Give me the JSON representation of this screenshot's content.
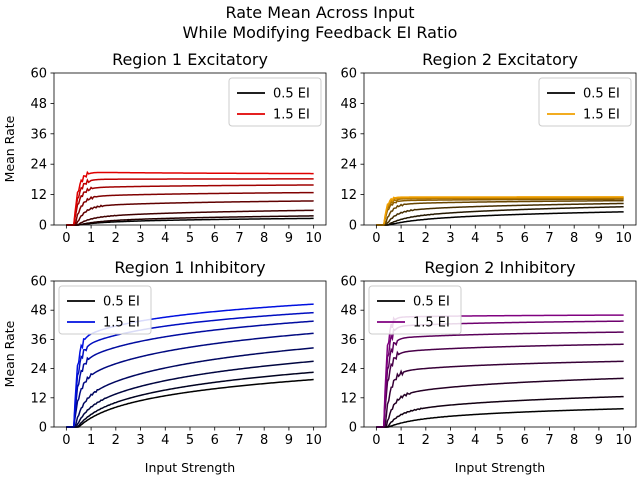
{
  "figure": {
    "title_line1": "Rate Mean Across Input",
    "title_line2": "While Modifying Feedback EI Ratio"
  },
  "chart_data": [
    {
      "type": "line",
      "title": "Region 1 Excitatory",
      "xlabel": "",
      "ylabel": "Mean Rate",
      "xlim": [
        -0.5,
        10.5
      ],
      "ylim": [
        0,
        60
      ],
      "xticks": [
        0,
        1,
        2,
        3,
        4,
        5,
        6,
        7,
        8,
        9,
        10
      ],
      "yticks": [
        0,
        12,
        24,
        36,
        48,
        60
      ],
      "legend_position": "top-right",
      "legend": [
        {
          "label": "0.5 EI",
          "color": "#000000"
        },
        {
          "label": "1.5 EI",
          "color": "#e00000"
        }
      ],
      "color_start": "#000000",
      "color_end": "#e00000",
      "series": [
        {
          "onset": 0.5,
          "rise": 2.2,
          "jump": 0.5,
          "grow": 2.5,
          "final": 2.6
        },
        {
          "onset": 0.5,
          "rise": 1.8,
          "jump": 0.8,
          "grow": 2.8,
          "final": 3.6
        },
        {
          "onset": 0.45,
          "rise": 1.3,
          "jump": 2.5,
          "grow": 2.5,
          "final": 5.8
        },
        {
          "onset": 0.4,
          "rise": 0.9,
          "jump": 7.0,
          "grow": 1.5,
          "final": 9.5
        },
        {
          "onset": 0.35,
          "rise": 0.7,
          "jump": 11.0,
          "grow": 1.0,
          "final": 12.8
        },
        {
          "onset": 0.3,
          "rise": 0.6,
          "jump": 14.5,
          "grow": 1.0,
          "final": 15.8
        },
        {
          "onset": 0.3,
          "rise": 0.55,
          "jump": 18.0,
          "grow": 1.0,
          "final": 18.2
        },
        {
          "onset": 0.3,
          "rise": 0.5,
          "jump": 21.0,
          "grow": 1.0,
          "final": 20.3
        }
      ]
    },
    {
      "type": "line",
      "title": "Region 2 Excitatory",
      "xlabel": "",
      "ylabel": "",
      "xlim": [
        -0.5,
        10.5
      ],
      "ylim": [
        0,
        60
      ],
      "xticks": [
        0,
        1,
        2,
        3,
        4,
        5,
        6,
        7,
        8,
        9,
        10
      ],
      "yticks": [
        0,
        12,
        24,
        36,
        48,
        60
      ],
      "legend_position": "top-right",
      "legend": [
        {
          "label": "0.5 EI",
          "color": "#000000"
        },
        {
          "label": "1.5 EI",
          "color": "#f0a000"
        }
      ],
      "color_start": "#000000",
      "color_end": "#f0a000",
      "series": [
        {
          "onset": 0.5,
          "rise": 2.5,
          "jump": 0.5,
          "grow": 2.5,
          "final": 5.2
        },
        {
          "onset": 0.45,
          "rise": 1.6,
          "jump": 2.0,
          "grow": 2.0,
          "final": 7.2
        },
        {
          "onset": 0.4,
          "rise": 1.0,
          "jump": 5.0,
          "grow": 1.5,
          "final": 8.5
        },
        {
          "onset": 0.35,
          "rise": 0.7,
          "jump": 8.0,
          "grow": 1.0,
          "final": 9.6
        },
        {
          "onset": 0.3,
          "rise": 0.5,
          "jump": 9.5,
          "grow": 1.0,
          "final": 10.2
        },
        {
          "onset": 0.3,
          "rise": 0.45,
          "jump": 10.3,
          "grow": 1.0,
          "final": 10.6
        },
        {
          "onset": 0.3,
          "rise": 0.4,
          "jump": 10.7,
          "grow": 1.0,
          "final": 10.9
        },
        {
          "onset": 0.3,
          "rise": 0.35,
          "jump": 11.0,
          "grow": 1.0,
          "final": 11.1
        }
      ]
    },
    {
      "type": "line",
      "title": "Region 1 Inhibitory",
      "xlabel": "Input Strength",
      "ylabel": "Mean Rate",
      "xlim": [
        -0.5,
        10.5
      ],
      "ylim": [
        0,
        60
      ],
      "xticks": [
        0,
        1,
        2,
        3,
        4,
        5,
        6,
        7,
        8,
        9,
        10
      ],
      "yticks": [
        0,
        12,
        24,
        36,
        48,
        60
      ],
      "legend_position": "top-left",
      "legend": [
        {
          "label": "0.5 EI",
          "color": "#000000"
        },
        {
          "label": "1.5 EI",
          "color": "#0010e0"
        }
      ],
      "color_start": "#000000",
      "color_end": "#0010e0",
      "series": [
        {
          "onset": 0.5,
          "rise": 1.8,
          "jump": 1.0,
          "grow": 6.0,
          "final": 19.5
        },
        {
          "onset": 0.45,
          "rise": 1.4,
          "jump": 2.0,
          "grow": 6.0,
          "final": 22.5
        },
        {
          "onset": 0.4,
          "rise": 1.0,
          "jump": 4.5,
          "grow": 5.0,
          "final": 27.0
        },
        {
          "onset": 0.35,
          "rise": 0.8,
          "jump": 9.0,
          "grow": 4.0,
          "final": 32.5
        },
        {
          "onset": 0.3,
          "rise": 0.6,
          "jump": 17.0,
          "grow": 3.5,
          "final": 38.5
        },
        {
          "onset": 0.3,
          "rise": 0.5,
          "jump": 25.0,
          "grow": 3.0,
          "final": 43.5
        },
        {
          "onset": 0.3,
          "rise": 0.45,
          "jump": 31.0,
          "grow": 3.0,
          "final": 47.0
        },
        {
          "onset": 0.3,
          "rise": 0.4,
          "jump": 35.0,
          "grow": 3.0,
          "final": 50.5
        }
      ]
    },
    {
      "type": "line",
      "title": "Region 2 Inhibitory",
      "xlabel": "Input Strength",
      "ylabel": "",
      "xlim": [
        -0.5,
        10.5
      ],
      "ylim": [
        0,
        60
      ],
      "xticks": [
        0,
        1,
        2,
        3,
        4,
        5,
        6,
        7,
        8,
        9,
        10
      ],
      "yticks": [
        0,
        12,
        24,
        36,
        48,
        60
      ],
      "legend_position": "top-left",
      "legend": [
        {
          "label": "0.5 EI",
          "color": "#000000"
        },
        {
          "label": "1.5 EI",
          "color": "#800080"
        }
      ],
      "color_start": "#000000",
      "color_end": "#800080",
      "series": [
        {
          "onset": 0.5,
          "rise": 2.0,
          "jump": 1.0,
          "grow": 2.5,
          "final": 7.5
        },
        {
          "onset": 0.45,
          "rise": 1.2,
          "jump": 5.0,
          "grow": 2.0,
          "final": 12.5
        },
        {
          "onset": 0.4,
          "rise": 0.8,
          "jump": 12.0,
          "grow": 1.0,
          "final": 20.0
        },
        {
          "onset": 0.35,
          "rise": 0.6,
          "jump": 22.0,
          "grow": 1.0,
          "final": 27.0
        },
        {
          "onset": 0.3,
          "rise": 0.5,
          "jump": 30.0,
          "grow": 1.0,
          "final": 34.0
        },
        {
          "onset": 0.3,
          "rise": 0.45,
          "jump": 36.0,
          "grow": 1.0,
          "final": 39.0
        },
        {
          "onset": 0.3,
          "rise": 0.4,
          "jump": 41.0,
          "grow": 1.0,
          "final": 43.5
        },
        {
          "onset": 0.3,
          "rise": 0.35,
          "jump": 45.0,
          "grow": 1.0,
          "final": 46.0
        }
      ]
    }
  ]
}
